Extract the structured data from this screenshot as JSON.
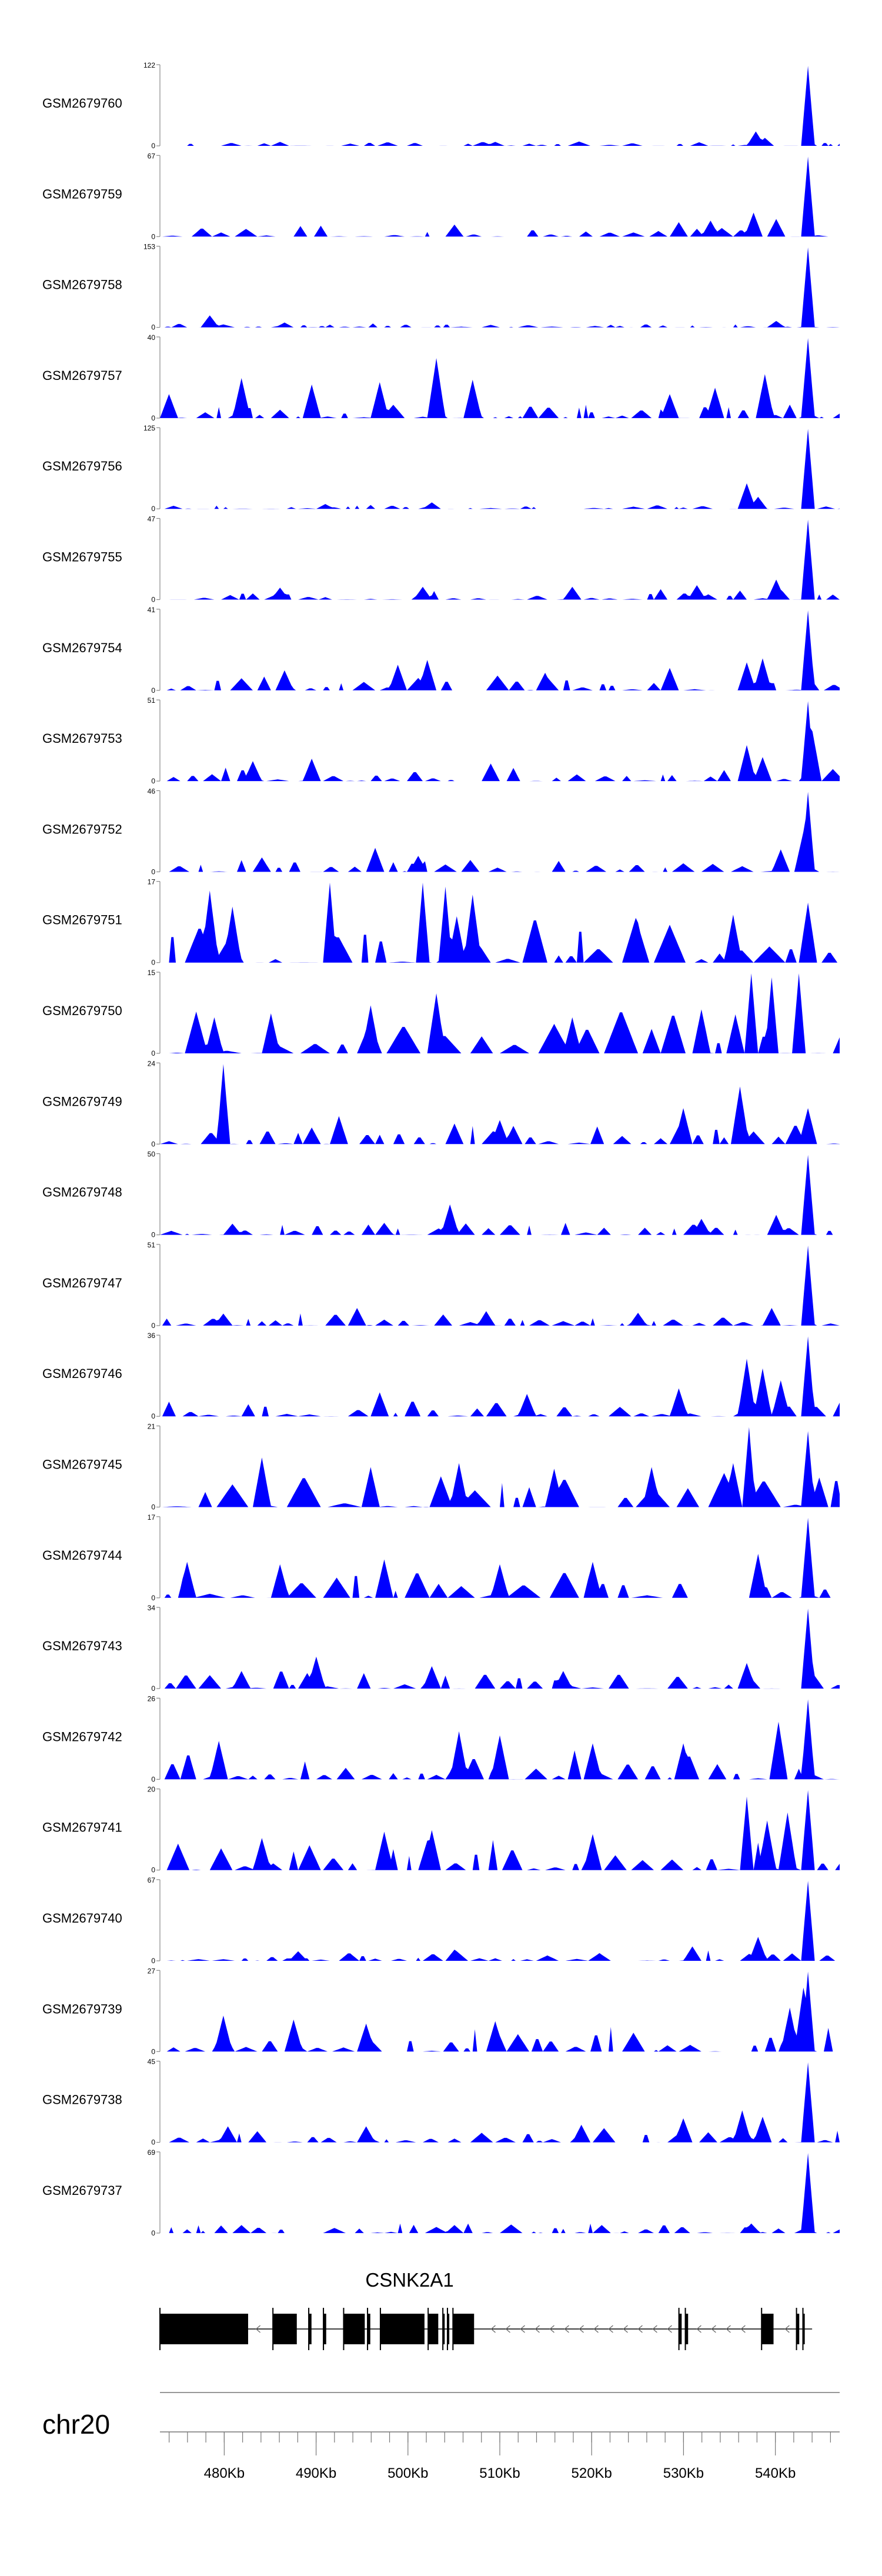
{
  "chart_data": {
    "type": "area",
    "chromosome": "chr20",
    "xlim_kb": [
      473,
      547
    ],
    "x_ticks_kb": [
      480,
      490,
      500,
      510,
      520,
      530,
      540
    ],
    "x_tick_labels": [
      "480Kb",
      "490Kb",
      "500Kb",
      "510Kb",
      "520Kb",
      "530Kb",
      "540Kb"
    ],
    "minor_tick_step_kb": 2,
    "fill_color": "#0000ff",
    "gene": {
      "name": "CSNK2A1",
      "start_kb": 473,
      "end_kb": 544,
      "strand": "-",
      "exons_kb": [
        [
          473,
          482.6
        ],
        [
          485.3,
          487.9
        ],
        [
          489.2,
          489.5
        ],
        [
          490.8,
          491.1
        ],
        [
          493.0,
          495.3
        ],
        [
          495.6,
          495.9
        ],
        [
          497.0,
          501.8
        ],
        [
          502.2,
          503.3
        ],
        [
          503.8,
          504.0
        ],
        [
          504.3,
          504.5
        ],
        [
          504.9,
          507.2
        ],
        [
          529.5,
          529.8
        ],
        [
          530.2,
          530.5
        ],
        [
          538.5,
          539.8
        ],
        [
          542.3,
          542.6
        ],
        [
          543.0,
          543.2
        ]
      ]
    },
    "series": [
      {
        "name": "GSM2679760",
        "ymax": 122,
        "bg_scale": 0.06,
        "peaks_kb": [
          [
            543.6,
            1.0
          ],
          [
            537.8,
            0.18
          ],
          [
            538.8,
            0.1
          ],
          [
            509.5,
            0.05
          ],
          [
            486.0,
            0.05
          ]
        ]
      },
      {
        "name": "GSM2679759",
        "ymax": 67,
        "bg_scale": 0.14,
        "peaks_kb": [
          [
            543.6,
            1.0
          ],
          [
            537.6,
            0.3
          ],
          [
            540.0,
            0.22
          ],
          [
            533.0,
            0.2
          ],
          [
            505.0,
            0.15
          ],
          [
            529.5,
            0.18
          ]
        ]
      },
      {
        "name": "GSM2679758",
        "ymax": 153,
        "bg_scale": 0.05,
        "peaks_kb": [
          [
            543.6,
            1.0
          ],
          [
            478.5,
            0.15
          ],
          [
            540.2,
            0.08
          ],
          [
            486.5,
            0.06
          ]
        ]
      },
      {
        "name": "GSM2679757",
        "ymax": 40,
        "bg_scale": 0.18,
        "peaks_kb": [
          [
            543.6,
            1.0
          ],
          [
            503.0,
            0.75
          ],
          [
            482.0,
            0.5
          ],
          [
            538.8,
            0.55
          ],
          [
            507.0,
            0.48
          ],
          [
            497.0,
            0.45
          ],
          [
            489.5,
            0.42
          ],
          [
            533.5,
            0.38
          ],
          [
            474.0,
            0.3
          ],
          [
            528.5,
            0.3
          ]
        ]
      },
      {
        "name": "GSM2679756",
        "ymax": 125,
        "bg_scale": 0.05,
        "peaks_kb": [
          [
            543.6,
            1.0
          ],
          [
            536.8,
            0.32
          ],
          [
            538.0,
            0.15
          ],
          [
            502.5,
            0.08
          ],
          [
            491.0,
            0.06
          ]
        ]
      },
      {
        "name": "GSM2679755",
        "ymax": 47,
        "bg_scale": 0.13,
        "peaks_kb": [
          [
            543.6,
            1.0
          ],
          [
            540.0,
            0.25
          ],
          [
            531.5,
            0.18
          ],
          [
            518.0,
            0.16
          ],
          [
            501.5,
            0.16
          ],
          [
            486.0,
            0.15
          ]
        ]
      },
      {
        "name": "GSM2679754",
        "ymax": 41,
        "bg_scale": 0.2,
        "peaks_kb": [
          [
            543.6,
            1.0
          ],
          [
            502.2,
            0.38
          ],
          [
            499.0,
            0.32
          ],
          [
            538.5,
            0.4
          ],
          [
            536.8,
            0.35
          ],
          [
            528.5,
            0.28
          ],
          [
            515.0,
            0.22
          ],
          [
            486.5,
            0.25
          ]
        ]
      },
      {
        "name": "GSM2679753",
        "ymax": 51,
        "bg_scale": 0.18,
        "peaks_kb": [
          [
            543.6,
            1.0
          ],
          [
            544.0,
            0.62
          ],
          [
            536.8,
            0.45
          ],
          [
            489.5,
            0.28
          ],
          [
            538.5,
            0.3
          ],
          [
            483.0,
            0.25
          ],
          [
            509.0,
            0.22
          ]
        ]
      },
      {
        "name": "GSM2679752",
        "ymax": 46,
        "bg_scale": 0.15,
        "peaks_kb": [
          [
            543.6,
            1.0
          ],
          [
            543.0,
            0.5
          ],
          [
            496.5,
            0.3
          ],
          [
            540.5,
            0.28
          ],
          [
            501.0,
            0.2
          ],
          [
            484.0,
            0.18
          ]
        ]
      },
      {
        "name": "GSM2679751",
        "ymax": 17,
        "bg_scale": 0.6,
        "peaks_kb": [
          [
            491.5,
            1.0
          ],
          [
            501.5,
            1.0
          ],
          [
            504.0,
            0.95
          ],
          [
            478.5,
            0.9
          ],
          [
            481.0,
            0.7
          ],
          [
            507.0,
            0.85
          ],
          [
            535.5,
            0.6
          ],
          [
            543.6,
            0.75
          ],
          [
            525.0,
            0.5
          ],
          [
            514.0,
            0.5
          ]
        ]
      },
      {
        "name": "GSM2679750",
        "ymax": 15,
        "bg_scale": 0.55,
        "peaks_kb": [
          [
            537.5,
            1.0
          ],
          [
            542.5,
            1.0
          ],
          [
            539.5,
            0.95
          ],
          [
            503.2,
            0.75
          ],
          [
            496.0,
            0.6
          ],
          [
            532.0,
            0.55
          ],
          [
            518.0,
            0.45
          ],
          [
            479.0,
            0.45
          ],
          [
            485.0,
            0.5
          ]
        ]
      },
      {
        "name": "GSM2679749",
        "ymax": 24,
        "bg_scale": 0.28,
        "peaks_kb": [
          [
            479.8,
            1.0
          ],
          [
            536.2,
            0.72
          ],
          [
            530.0,
            0.45
          ],
          [
            543.6,
            0.45
          ],
          [
            492.5,
            0.35
          ],
          [
            510.0,
            0.3
          ]
        ]
      },
      {
        "name": "GSM2679748",
        "ymax": 50,
        "bg_scale": 0.16,
        "peaks_kb": [
          [
            543.6,
            1.0
          ],
          [
            504.5,
            0.38
          ],
          [
            540.0,
            0.25
          ],
          [
            532.0,
            0.2
          ],
          [
            497.5,
            0.15
          ],
          [
            481.0,
            0.14
          ]
        ]
      },
      {
        "name": "GSM2679747",
        "ymax": 51,
        "bg_scale": 0.16,
        "peaks_kb": [
          [
            543.6,
            1.0
          ],
          [
            494.5,
            0.22
          ],
          [
            539.5,
            0.22
          ],
          [
            508.5,
            0.18
          ],
          [
            525.0,
            0.16
          ],
          [
            480.0,
            0.15
          ]
        ]
      },
      {
        "name": "GSM2679746",
        "ymax": 36,
        "bg_scale": 0.22,
        "peaks_kb": [
          [
            543.6,
            1.0
          ],
          [
            536.8,
            0.72
          ],
          [
            538.5,
            0.6
          ],
          [
            540.5,
            0.45
          ],
          [
            529.5,
            0.35
          ],
          [
            497.0,
            0.3
          ],
          [
            513.0,
            0.28
          ]
        ]
      },
      {
        "name": "GSM2679745",
        "ymax": 21,
        "bg_scale": 0.45,
        "peaks_kb": [
          [
            537.2,
            1.0
          ],
          [
            543.6,
            0.95
          ],
          [
            484.0,
            0.62
          ],
          [
            535.5,
            0.55
          ],
          [
            496.0,
            0.5
          ],
          [
            505.5,
            0.55
          ],
          [
            516.0,
            0.48
          ],
          [
            526.5,
            0.5
          ]
        ]
      },
      {
        "name": "GSM2679744",
        "ymax": 17,
        "bg_scale": 0.42,
        "peaks_kb": [
          [
            543.6,
            1.0
          ],
          [
            538.0,
            0.55
          ],
          [
            520.0,
            0.45
          ],
          [
            497.5,
            0.48
          ],
          [
            486.0,
            0.42
          ],
          [
            476.0,
            0.45
          ],
          [
            510.0,
            0.42
          ]
        ]
      },
      {
        "name": "GSM2679743",
        "ymax": 34,
        "bg_scale": 0.25,
        "peaks_kb": [
          [
            543.6,
            1.0
          ],
          [
            490.0,
            0.4
          ],
          [
            536.8,
            0.32
          ],
          [
            502.5,
            0.28
          ],
          [
            517.0,
            0.22
          ],
          [
            482.0,
            0.22
          ]
        ]
      },
      {
        "name": "GSM2679742",
        "ymax": 26,
        "bg_scale": 0.38,
        "peaks_kb": [
          [
            543.6,
            1.0
          ],
          [
            540.3,
            0.72
          ],
          [
            505.5,
            0.6
          ],
          [
            510.0,
            0.55
          ],
          [
            479.5,
            0.48
          ],
          [
            530.0,
            0.45
          ],
          [
            520.0,
            0.45
          ]
        ]
      },
      {
        "name": "GSM2679741",
        "ymax": 20,
        "bg_scale": 0.38,
        "peaks_kb": [
          [
            543.6,
            1.0
          ],
          [
            536.8,
            0.92
          ],
          [
            539.0,
            0.62
          ],
          [
            541.3,
            0.72
          ],
          [
            497.5,
            0.48
          ],
          [
            502.5,
            0.5
          ],
          [
            484.0,
            0.4
          ],
          [
            520.0,
            0.45
          ]
        ]
      },
      {
        "name": "GSM2679740",
        "ymax": 67,
        "bg_scale": 0.13,
        "peaks_kb": [
          [
            543.6,
            1.0
          ],
          [
            538.0,
            0.3
          ],
          [
            531.0,
            0.18
          ],
          [
            505.0,
            0.14
          ],
          [
            488.0,
            0.12
          ]
        ]
      },
      {
        "name": "GSM2679739",
        "ymax": 27,
        "bg_scale": 0.32,
        "peaks_kb": [
          [
            543.6,
            1.0
          ],
          [
            543.0,
            0.8
          ],
          [
            480.0,
            0.45
          ],
          [
            487.5,
            0.4
          ],
          [
            509.5,
            0.38
          ],
          [
            541.5,
            0.55
          ],
          [
            495.5,
            0.35
          ]
        ]
      },
      {
        "name": "GSM2679738",
        "ymax": 45,
        "bg_scale": 0.18,
        "peaks_kb": [
          [
            543.6,
            1.0
          ],
          [
            536.5,
            0.4
          ],
          [
            530.0,
            0.3
          ],
          [
            538.5,
            0.32
          ],
          [
            519.0,
            0.22
          ],
          [
            495.5,
            0.2
          ],
          [
            480.5,
            0.2
          ]
        ]
      },
      {
        "name": "GSM2679737",
        "ymax": 69,
        "bg_scale": 0.12,
        "peaks_kb": [
          [
            543.6,
            1.0
          ],
          [
            537.5,
            0.12
          ],
          [
            505.0,
            0.1
          ],
          [
            521.0,
            0.1
          ],
          [
            482.0,
            0.1
          ]
        ]
      }
    ]
  }
}
